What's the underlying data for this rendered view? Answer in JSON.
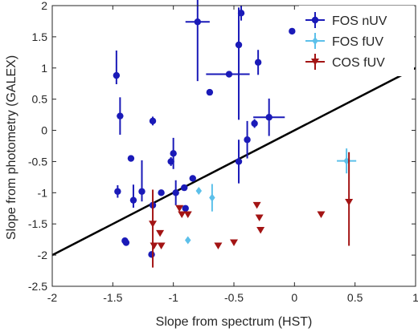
{
  "chart_data": {
    "type": "scatter",
    "xlabel": "Slope from spectrum (HST)",
    "ylabel": "Slope from photometry (GALEX)",
    "xlim": [
      -2,
      1
    ],
    "ylim": [
      -2.5,
      2
    ],
    "xticks": [
      "-2",
      "-1.5",
      "-1",
      "-0.5",
      "0",
      "0.5",
      "1"
    ],
    "yticks": [
      "-2.5",
      "-2",
      "-1.5",
      "-1",
      "-0.5",
      "0",
      "0.5",
      "1",
      "1.5",
      "2"
    ],
    "grid": false,
    "legend_position": "top-right",
    "reference_line": {
      "slope": 1,
      "intercept": 0,
      "color": "#000000"
    },
    "series": [
      {
        "name": "FOS nUV",
        "color": "#1a1ab8",
        "marker": "circle",
        "points": [
          {
            "x": -1.47,
            "y": 0.88,
            "yerr_lo": 0.14,
            "yerr_hi": 0.4
          },
          {
            "x": -1.44,
            "y": 0.23,
            "yerr_lo": 0.3,
            "yerr_hi": 0.3
          },
          {
            "x": -1.46,
            "y": -0.98,
            "yerr_lo": 0.1,
            "yerr_hi": 0.1
          },
          {
            "x": -1.35,
            "y": -0.45
          },
          {
            "x": -1.33,
            "y": -1.12,
            "yerr_lo": 0.12,
            "yerr_hi": 0.25
          },
          {
            "x": -1.26,
            "y": -0.98,
            "yerr_lo": 0.16,
            "yerr_hi": 0.5
          },
          {
            "x": -1.4,
            "y": -1.77
          },
          {
            "x": -1.39,
            "y": -1.8
          },
          {
            "x": -1.17,
            "y": 0.15,
            "yerr_lo": 0.07,
            "yerr_hi": 0.07
          },
          {
            "x": -1.17,
            "y": -1.2
          },
          {
            "x": -1.18,
            "y": -1.99
          },
          {
            "x": -1.1,
            "y": -1.0
          },
          {
            "x": -1.02,
            "y": -0.5,
            "yerr_lo": 0.07,
            "yerr_hi": 0.07
          },
          {
            "x": -1.0,
            "y": -0.37,
            "yerr_lo": 0.25,
            "yerr_hi": 0.25
          },
          {
            "x": -0.98,
            "y": -1.0,
            "yerr_lo": 0.2,
            "yerr_hi": 0.2
          },
          {
            "x": -0.91,
            "y": -0.92
          },
          {
            "x": -0.9,
            "y": -1.25
          },
          {
            "x": -0.84,
            "y": -0.77
          },
          {
            "x": -0.8,
            "y": 1.74,
            "yerr_lo": 0.95,
            "yerr_hi": 0.9,
            "xerr_lo": 0.1,
            "xerr_hi": 0.1
          },
          {
            "x": -0.7,
            "y": 0.61
          },
          {
            "x": -0.54,
            "y": 0.9,
            "xerr_lo": 0.19,
            "xerr_hi": 0.17
          },
          {
            "x": -0.46,
            "y": 1.37,
            "yerr_lo": 1.2,
            "yerr_hi": 0.6
          },
          {
            "x": -0.46,
            "y": -0.5,
            "yerr_lo": 0.35,
            "yerr_hi": 0.35
          },
          {
            "x": -0.44,
            "y": 1.88,
            "yerr_lo": 0.12,
            "yerr_hi": 0.12
          },
          {
            "x": -0.39,
            "y": -0.15,
            "yerr_lo": 0.3,
            "yerr_hi": 0.3
          },
          {
            "x": -0.33,
            "y": 0.11,
            "yerr_lo": 0.07,
            "yerr_hi": 0.07
          },
          {
            "x": -0.3,
            "y": 1.09,
            "yerr_lo": 0.2,
            "yerr_hi": 0.2
          },
          {
            "x": -0.21,
            "y": 0.21,
            "yerr_lo": 0.3,
            "yerr_hi": 0.3,
            "xerr_lo": 0.13,
            "xerr_hi": 0.13
          },
          {
            "x": -0.02,
            "y": 1.59
          }
        ]
      },
      {
        "name": "FOS fUV",
        "color": "#5cc0ea",
        "marker": "diamond",
        "points": [
          {
            "x": -0.79,
            "y": -0.97
          },
          {
            "x": -0.68,
            "y": -1.08,
            "yerr_lo": 0.22,
            "yerr_hi": 0.22
          },
          {
            "x": -0.88,
            "y": -1.76
          },
          {
            "x": 0.43,
            "y": -0.49,
            "yerr_lo": 0.2,
            "yerr_hi": 0.2,
            "xerr_lo": 0.08,
            "xerr_hi": 0.08
          }
        ]
      },
      {
        "name": "COS fUV",
        "color": "#a31414",
        "marker": "triangle-down",
        "points": [
          {
            "x": -1.17,
            "y": -1.5,
            "yerr_lo": 0.7,
            "yerr_hi": 0.55
          },
          {
            "x": -1.16,
            "y": -1.85
          },
          {
            "x": -1.11,
            "y": -1.65
          },
          {
            "x": -1.1,
            "y": -1.85
          },
          {
            "x": -0.95,
            "y": -1.25
          },
          {
            "x": -0.93,
            "y": -1.35
          },
          {
            "x": -0.88,
            "y": -1.35
          },
          {
            "x": -0.63,
            "y": -1.85
          },
          {
            "x": -0.5,
            "y": -1.8
          },
          {
            "x": -0.31,
            "y": -1.2
          },
          {
            "x": -0.29,
            "y": -1.4
          },
          {
            "x": -0.28,
            "y": -1.6
          },
          {
            "x": 0.22,
            "y": -1.35
          },
          {
            "x": 0.45,
            "y": -1.15,
            "yerr_lo": 0.7,
            "yerr_hi": 0.8
          }
        ]
      }
    ]
  }
}
